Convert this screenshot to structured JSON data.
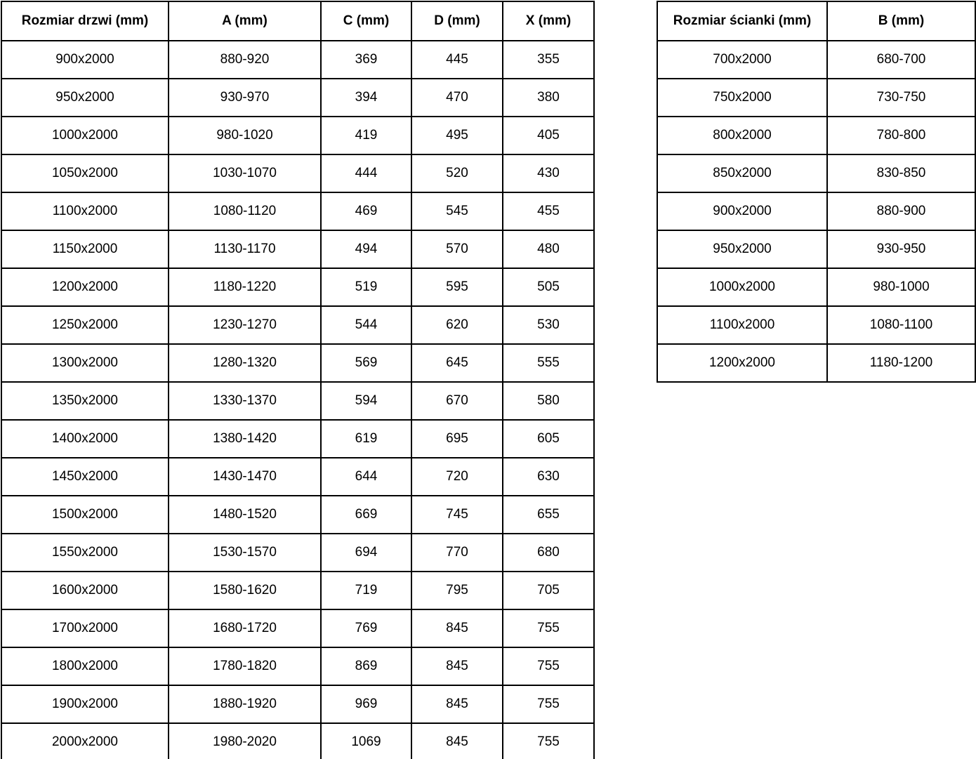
{
  "colors": {
    "background": "#ffffff",
    "border": "#000000",
    "text": "#000000"
  },
  "left_table": {
    "name": "door-size-table",
    "headers": [
      "Rozmiar drzwi (mm)",
      "A (mm)",
      "C (mm)",
      "D (mm)",
      "X (mm)"
    ],
    "rows": [
      [
        "900x2000",
        "880-920",
        "369",
        "445",
        "355"
      ],
      [
        "950x2000",
        "930-970",
        "394",
        "470",
        "380"
      ],
      [
        "1000x2000",
        "980-1020",
        "419",
        "495",
        "405"
      ],
      [
        "1050x2000",
        "1030-1070",
        "444",
        "520",
        "430"
      ],
      [
        "1100x2000",
        "1080-1120",
        "469",
        "545",
        "455"
      ],
      [
        "1150x2000",
        "1130-1170",
        "494",
        "570",
        "480"
      ],
      [
        "1200x2000",
        "1180-1220",
        "519",
        "595",
        "505"
      ],
      [
        "1250x2000",
        "1230-1270",
        "544",
        "620",
        "530"
      ],
      [
        "1300x2000",
        "1280-1320",
        "569",
        "645",
        "555"
      ],
      [
        "1350x2000",
        "1330-1370",
        "594",
        "670",
        "580"
      ],
      [
        "1400x2000",
        "1380-1420",
        "619",
        "695",
        "605"
      ],
      [
        "1450x2000",
        "1430-1470",
        "644",
        "720",
        "630"
      ],
      [
        "1500x2000",
        "1480-1520",
        "669",
        "745",
        "655"
      ],
      [
        "1550x2000",
        "1530-1570",
        "694",
        "770",
        "680"
      ],
      [
        "1600x2000",
        "1580-1620",
        "719",
        "795",
        "705"
      ],
      [
        "1700x2000",
        "1680-1720",
        "769",
        "845",
        "755"
      ],
      [
        "1800x2000",
        "1780-1820",
        "869",
        "845",
        "755"
      ],
      [
        "1900x2000",
        "1880-1920",
        "969",
        "845",
        "755"
      ],
      [
        "2000x2000",
        "1980-2020",
        "1069",
        "845",
        "755"
      ]
    ]
  },
  "right_table": {
    "name": "wall-size-table",
    "headers": [
      "Rozmiar ścianki (mm)",
      "B (mm)"
    ],
    "rows": [
      [
        "700x2000",
        "680-700"
      ],
      [
        "750x2000",
        "730-750"
      ],
      [
        "800x2000",
        "780-800"
      ],
      [
        "850x2000",
        "830-850"
      ],
      [
        "900x2000",
        "880-900"
      ],
      [
        "950x2000",
        "930-950"
      ],
      [
        "1000x2000",
        "980-1000"
      ],
      [
        "1100x2000",
        "1080-1100"
      ],
      [
        "1200x2000",
        "1180-1200"
      ]
    ]
  }
}
